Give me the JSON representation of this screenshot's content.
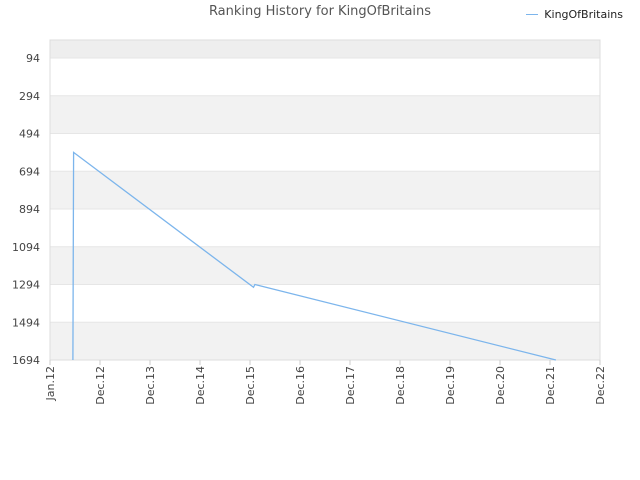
{
  "chart_data": {
    "type": "line",
    "title": "Ranking History for KingOfBritains",
    "xlabel": "",
    "ylabel": "",
    "y_reversed": true,
    "ylim": [
      94,
      1694
    ],
    "xlim": [
      "2012-01-01",
      "2022-12-01"
    ],
    "y_ticks": [
      "94",
      "294",
      "494",
      "694",
      "894",
      "1094",
      "1294",
      "1494",
      "1694"
    ],
    "x_ticks": [
      "Jan.12",
      "Dec.12",
      "Dec.13",
      "Dec.14",
      "Dec.15",
      "Dec.16",
      "Dec.17",
      "Dec.18",
      "Dec.19",
      "Dec.20",
      "Dec.21",
      "Dec.22"
    ],
    "grid": true,
    "legend_position": "top-right",
    "series": [
      {
        "name": "KingOfBritains",
        "color": "#7cb5ec",
        "points": [
          {
            "x": "2012-06-15",
            "y": 1694
          },
          {
            "x": "2012-06-20",
            "y": 594
          },
          {
            "x": "2016-01-15",
            "y": 1309
          },
          {
            "x": "2016-01-25",
            "y": 1294
          },
          {
            "x": "2022-01-15",
            "y": 1694
          }
        ]
      }
    ]
  }
}
